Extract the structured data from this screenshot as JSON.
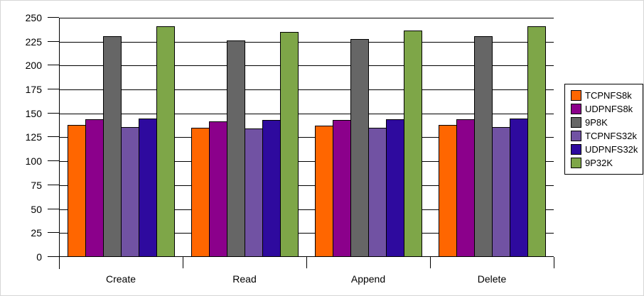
{
  "chart_data": {
    "type": "bar",
    "title": "",
    "xlabel": "",
    "ylabel": "",
    "categories": [
      "Create",
      "Read",
      "Append",
      "Delete"
    ],
    "series": [
      {
        "name": "TCPNFS8k",
        "color": "#FF6600",
        "values": [
          138,
          135,
          137,
          138
        ]
      },
      {
        "name": "UDPNFS8k",
        "color": "#8B008B",
        "values": [
          144,
          142,
          143,
          144
        ]
      },
      {
        "name": "9P8K",
        "color": "#666666",
        "values": [
          231,
          226,
          228,
          231
        ]
      },
      {
        "name": "TCPNFS32k",
        "color": "#7152A3",
        "values": [
          136,
          134,
          135,
          136
        ]
      },
      {
        "name": "UDPNFS32k",
        "color": "#2E0A9E",
        "values": [
          145,
          143,
          144,
          145
        ]
      },
      {
        "name": "9P32K",
        "color": "#7EA648",
        "values": [
          241,
          235,
          237,
          241
        ]
      }
    ],
    "ylim": [
      0,
      250
    ],
    "ytick_step": 25,
    "grid": true,
    "legend_position": "right",
    "axis_color": "#000000",
    "background_color": "#FFFFFF"
  }
}
